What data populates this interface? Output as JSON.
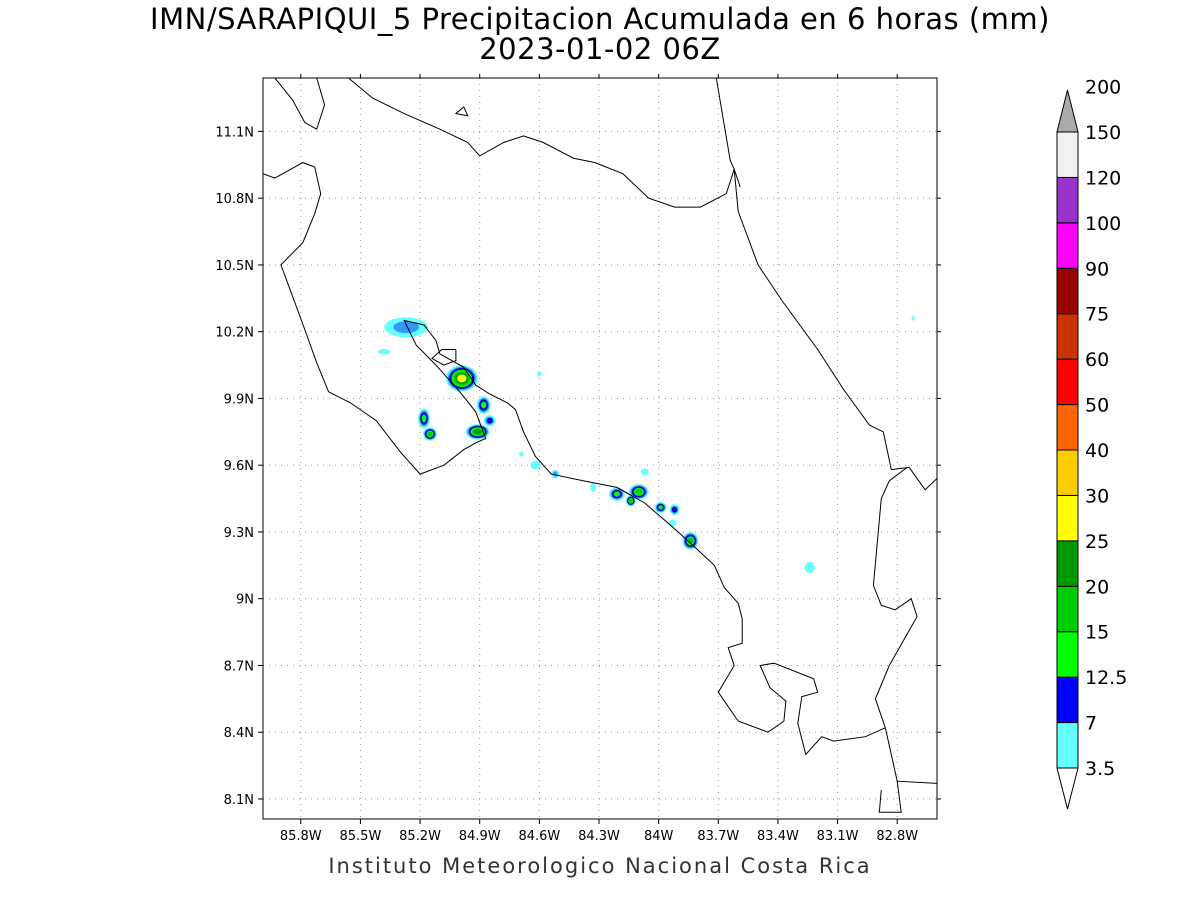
{
  "title": {
    "line1": "IMN/SARAPIQUI_5 Precipitacion Acumulada en 6 horas (mm)",
    "line2": "2023-01-02 06Z"
  },
  "footer": "Instituto Meteorologico Nacional Costa Rica",
  "map": {
    "lon_range": [
      -85.99,
      -82.6
    ],
    "lat_range": [
      8.01,
      11.34
    ],
    "lon_ticks": [
      {
        "value": -85.8,
        "label": "85.8W"
      },
      {
        "value": -85.5,
        "label": "85.5W"
      },
      {
        "value": -85.2,
        "label": "85.2W"
      },
      {
        "value": -84.9,
        "label": "84.9W"
      },
      {
        "value": -84.6,
        "label": "84.6W"
      },
      {
        "value": -84.3,
        "label": "84.3W"
      },
      {
        "value": -84.0,
        "label": "84W"
      },
      {
        "value": -83.7,
        "label": "83.7W"
      },
      {
        "value": -83.4,
        "label": "83.4W"
      },
      {
        "value": -83.1,
        "label": "83.1W"
      },
      {
        "value": -82.8,
        "label": "82.8W"
      }
    ],
    "lat_ticks": [
      {
        "value": 11.1,
        "label": "11.1N"
      },
      {
        "value": 10.8,
        "label": "10.8N"
      },
      {
        "value": 10.5,
        "label": "10.5N"
      },
      {
        "value": 10.2,
        "label": "10.2N"
      },
      {
        "value": 9.9,
        "label": "9.9N"
      },
      {
        "value": 9.6,
        "label": "9.6N"
      },
      {
        "value": 9.3,
        "label": "9.3N"
      },
      {
        "value": 9.0,
        "label": "9N"
      },
      {
        "value": 8.7,
        "label": "8.7N"
      },
      {
        "value": 8.4,
        "label": "8.4N"
      },
      {
        "value": 8.1,
        "label": "8.1N"
      }
    ],
    "grid": true,
    "coastlines": [
      [
        [
          -85.93,
          11.34
        ],
        [
          -85.84,
          11.24
        ],
        [
          -85.78,
          11.14
        ],
        [
          -85.72,
          11.11
        ],
        [
          -85.68,
          11.22
        ],
        [
          -85.72,
          11.34
        ]
      ],
      [
        [
          -85.56,
          11.34
        ],
        [
          -85.44,
          11.25
        ],
        [
          -85.28,
          11.18
        ],
        [
          -85.1,
          11.11
        ],
        [
          -84.96,
          11.05
        ],
        [
          -84.9,
          10.99
        ],
        [
          -84.78,
          11.05
        ],
        [
          -84.68,
          11.08
        ],
        [
          -84.58,
          11.05
        ],
        [
          -84.43,
          10.98
        ],
        [
          -84.32,
          10.96
        ],
        [
          -84.18,
          10.91
        ],
        [
          -84.05,
          10.8
        ],
        [
          -83.92,
          10.76
        ],
        [
          -83.79,
          10.76
        ],
        [
          -83.66,
          10.82
        ],
        [
          -83.62,
          10.93
        ],
        [
          -83.59,
          10.85
        ]
      ],
      [
        [
          -83.62,
          10.93
        ],
        [
          -83.64,
          10.97
        ],
        [
          -83.71,
          11.34
        ]
      ],
      [
        [
          -83.62,
          10.93
        ],
        [
          -83.6,
          10.74
        ],
        [
          -83.5,
          10.5
        ],
        [
          -83.38,
          10.34
        ],
        [
          -83.2,
          10.12
        ],
        [
          -83.07,
          9.94
        ],
        [
          -82.94,
          9.78
        ],
        [
          -82.87,
          9.75
        ],
        [
          -82.83,
          9.58
        ]
      ],
      [
        [
          -82.83,
          9.58
        ],
        [
          -82.74,
          9.59
        ],
        [
          -82.66,
          9.49
        ],
        [
          -82.6,
          9.54
        ]
      ],
      [
        [
          -82.75,
          9.59
        ],
        [
          -82.84,
          9.53
        ],
        [
          -82.88,
          9.45
        ],
        [
          -82.92,
          9.06
        ],
        [
          -82.88,
          8.97
        ],
        [
          -82.81,
          8.95
        ],
        [
          -82.73,
          9.0
        ],
        [
          -82.7,
          8.92
        ],
        [
          -82.84,
          8.7
        ],
        [
          -82.91,
          8.55
        ],
        [
          -82.86,
          8.42
        ],
        [
          -82.83,
          8.3
        ],
        [
          -82.8,
          8.18
        ],
        [
          -82.6,
          8.17
        ]
      ],
      [
        [
          -82.8,
          8.18
        ],
        [
          -82.78,
          8.04
        ],
        [
          -82.89,
          8.04
        ],
        [
          -82.88,
          8.14
        ]
      ],
      [
        [
          -82.86,
          8.42
        ],
        [
          -82.96,
          8.38
        ],
        [
          -83.12,
          8.36
        ],
        [
          -83.18,
          8.38
        ],
        [
          -83.26,
          8.3
        ],
        [
          -83.3,
          8.44
        ],
        [
          -83.28,
          8.56
        ],
        [
          -83.2,
          8.58
        ],
        [
          -83.22,
          8.64
        ],
        [
          -83.42,
          8.71
        ],
        [
          -83.49,
          8.7
        ],
        [
          -83.44,
          8.6
        ],
        [
          -83.36,
          8.54
        ],
        [
          -83.37,
          8.45
        ],
        [
          -83.45,
          8.4
        ],
        [
          -83.6,
          8.45
        ],
        [
          -83.7,
          8.58
        ],
        [
          -83.62,
          8.7
        ],
        [
          -83.65,
          8.78
        ],
        [
          -83.58,
          8.8
        ],
        [
          -83.58,
          8.91
        ],
        [
          -83.6,
          8.98
        ],
        [
          -83.67,
          9.05
        ],
        [
          -83.72,
          9.15
        ],
        [
          -83.84,
          9.25
        ],
        [
          -83.94,
          9.33
        ],
        [
          -84.07,
          9.43
        ],
        [
          -84.21,
          9.5
        ],
        [
          -84.38,
          9.53
        ],
        [
          -84.54,
          9.56
        ],
        [
          -84.62,
          9.64
        ],
        [
          -84.68,
          9.75
        ],
        [
          -84.72,
          9.85
        ],
        [
          -84.76,
          9.88
        ],
        [
          -84.85,
          9.92
        ],
        [
          -84.92,
          9.96
        ],
        [
          -84.98,
          10.04
        ],
        [
          -85.1,
          10.1
        ],
        [
          -85.12,
          10.16
        ],
        [
          -85.18,
          10.23
        ],
        [
          -85.28,
          10.25
        ],
        [
          -85.22,
          10.14
        ],
        [
          -85.12,
          10.05
        ],
        [
          -85.0,
          9.93
        ],
        [
          -84.92,
          9.84
        ],
        [
          -84.87,
          9.72
        ],
        [
          -84.92,
          9.7
        ],
        [
          -84.98,
          9.67
        ],
        [
          -85.08,
          9.6
        ],
        [
          -85.2,
          9.56
        ],
        [
          -85.3,
          9.66
        ],
        [
          -85.42,
          9.8
        ],
        [
          -85.55,
          9.88
        ],
        [
          -85.66,
          9.93
        ],
        [
          -85.72,
          10.06
        ],
        [
          -85.78,
          10.21
        ],
        [
          -85.85,
          10.38
        ],
        [
          -85.9,
          10.5
        ],
        [
          -85.79,
          10.6
        ],
        [
          -85.73,
          10.73
        ],
        [
          -85.7,
          10.82
        ],
        [
          -85.73,
          10.94
        ],
        [
          -85.79,
          10.96
        ],
        [
          -85.93,
          10.89
        ],
        [
          -85.99,
          10.91
        ]
      ],
      [
        [
          -85.02,
          10.12
        ],
        [
          -85.09,
          10.12
        ],
        [
          -85.14,
          10.08
        ],
        [
          -85.08,
          10.05
        ],
        [
          -85.02,
          10.07
        ],
        [
          -85.02,
          10.12
        ]
      ],
      [
        [
          -84.98,
          11.21
        ],
        [
          -84.96,
          11.17
        ],
        [
          -85.02,
          11.18
        ],
        [
          -84.98,
          11.21
        ]
      ]
    ]
  },
  "precip_cells": [
    {
      "lon": -85.27,
      "lat": 10.22,
      "rx": 0.11,
      "ry": 0.045,
      "value": 7
    },
    {
      "lon": -85.38,
      "lat": 10.11,
      "rx": 0.03,
      "ry": 0.012,
      "value": 3.5
    },
    {
      "lon": -84.99,
      "lat": 9.99,
      "rx": 0.08,
      "ry": 0.06,
      "value": 30
    },
    {
      "lon": -84.88,
      "lat": 9.87,
      "rx": 0.035,
      "ry": 0.04,
      "value": 15
    },
    {
      "lon": -84.85,
      "lat": 9.8,
      "rx": 0.03,
      "ry": 0.025,
      "value": 12.5
    },
    {
      "lon": -84.91,
      "lat": 9.75,
      "rx": 0.06,
      "ry": 0.035,
      "value": 25
    },
    {
      "lon": -85.18,
      "lat": 9.81,
      "rx": 0.03,
      "ry": 0.045,
      "value": 15
    },
    {
      "lon": -85.15,
      "lat": 9.74,
      "rx": 0.035,
      "ry": 0.03,
      "value": 20
    },
    {
      "lon": -84.62,
      "lat": 9.6,
      "rx": 0.025,
      "ry": 0.02,
      "value": 3.5
    },
    {
      "lon": -84.52,
      "lat": 9.56,
      "rx": 0.02,
      "ry": 0.02,
      "value": 7
    },
    {
      "lon": -84.21,
      "lat": 9.47,
      "rx": 0.04,
      "ry": 0.03,
      "value": 15
    },
    {
      "lon": -84.1,
      "lat": 9.48,
      "rx": 0.05,
      "ry": 0.035,
      "value": 20
    },
    {
      "lon": -84.14,
      "lat": 9.44,
      "rx": 0.025,
      "ry": 0.025,
      "value": 20
    },
    {
      "lon": -83.99,
      "lat": 9.41,
      "rx": 0.03,
      "ry": 0.025,
      "value": 15
    },
    {
      "lon": -83.92,
      "lat": 9.4,
      "rx": 0.025,
      "ry": 0.025,
      "value": 12.5
    },
    {
      "lon": -83.84,
      "lat": 9.26,
      "rx": 0.04,
      "ry": 0.04,
      "value": 20
    },
    {
      "lon": -84.07,
      "lat": 9.57,
      "rx": 0.02,
      "ry": 0.015,
      "value": 3.5
    },
    {
      "lon": -84.33,
      "lat": 9.5,
      "rx": 0.015,
      "ry": 0.02,
      "value": 3.5
    },
    {
      "lon": -83.93,
      "lat": 9.34,
      "rx": 0.02,
      "ry": 0.015,
      "value": 3.5
    },
    {
      "lon": -83.24,
      "lat": 9.14,
      "rx": 0.025,
      "ry": 0.025,
      "value": 3.5
    },
    {
      "lon": -84.69,
      "lat": 9.65,
      "rx": 0.012,
      "ry": 0.01,
      "value": 3.5
    },
    {
      "lon": -84.6,
      "lat": 10.01,
      "rx": 0.012,
      "ry": 0.012,
      "value": 3.5
    },
    {
      "lon": -82.72,
      "lat": 10.26,
      "rx": 0.008,
      "ry": 0.01,
      "value": 3.5
    }
  ],
  "legend": {
    "levels": [
      {
        "value": "3.5",
        "color": "#66ffff"
      },
      {
        "value": "7",
        "color": "#3399ff"
      },
      {
        "value": "12.5",
        "color": "#0000ff"
      },
      {
        "value": "15",
        "color": "#00ff00"
      },
      {
        "value": "20",
        "color": "#00cc00"
      },
      {
        "value": "25",
        "color": "#009900"
      },
      {
        "value": "30",
        "color": "#ffff00"
      },
      {
        "value": "40",
        "color": "#ffcc00"
      },
      {
        "value": "50",
        "color": "#ff6600"
      },
      {
        "value": "60",
        "color": "#ff0000"
      },
      {
        "value": "75",
        "color": "#cc3300"
      },
      {
        "value": "90",
        "color": "#990000"
      },
      {
        "value": "100",
        "color": "#ff00ff"
      },
      {
        "value": "120",
        "color": "#9933cc"
      },
      {
        "value": "150",
        "color": "#f2f2f2"
      },
      {
        "value": "200",
        "color": "#aaaaaa"
      }
    ]
  }
}
